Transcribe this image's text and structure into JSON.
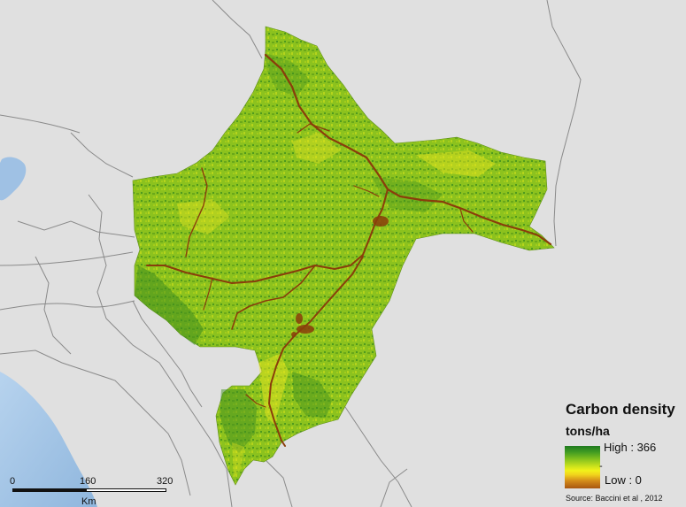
{
  "legend": {
    "title": "Carbon density",
    "unit": "tons/ha",
    "high_label": "High : 366",
    "low_label": "Low : 0",
    "middle_tick": "-",
    "ramp_colors": [
      "#1f7a1f",
      "#3f9a22",
      "#7fbf1e",
      "#c3df1d",
      "#f2f21a",
      "#f1d21c",
      "#d48c1a",
      "#a9560f"
    ]
  },
  "scalebar": {
    "ticks": [
      "0",
      "160",
      "320"
    ],
    "unit": "Km"
  },
  "source": "Source: Baccini et al , 2012",
  "colors": {
    "background": "#e0e0e0",
    "ocean": "#a9c9e8",
    "region_fill": "#8cc21e",
    "river": "#8a3d0b",
    "border": "#8a8a8a"
  }
}
